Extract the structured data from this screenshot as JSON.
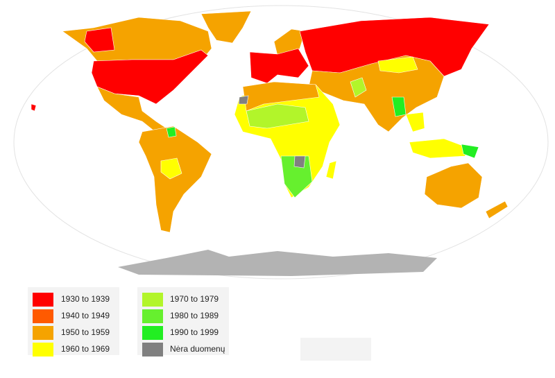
{
  "legend": {
    "items": [
      {
        "label": "1930 to 1939",
        "color": "#ff0000"
      },
      {
        "label": "1940 to 1949",
        "color": "#ff5a00"
      },
      {
        "label": "1950 to 1959",
        "color": "#f5a300"
      },
      {
        "label": "1960 to 1969",
        "color": "#ffff00"
      },
      {
        "label": "1970 to 1979",
        "color": "#b2f52a"
      },
      {
        "label": "1980 to 1989",
        "color": "#66f02e"
      },
      {
        "label": "1990 to 1999",
        "color": "#22ee22"
      },
      {
        "label": "Nėra duomenų",
        "color": "#808080"
      }
    ]
  }
}
